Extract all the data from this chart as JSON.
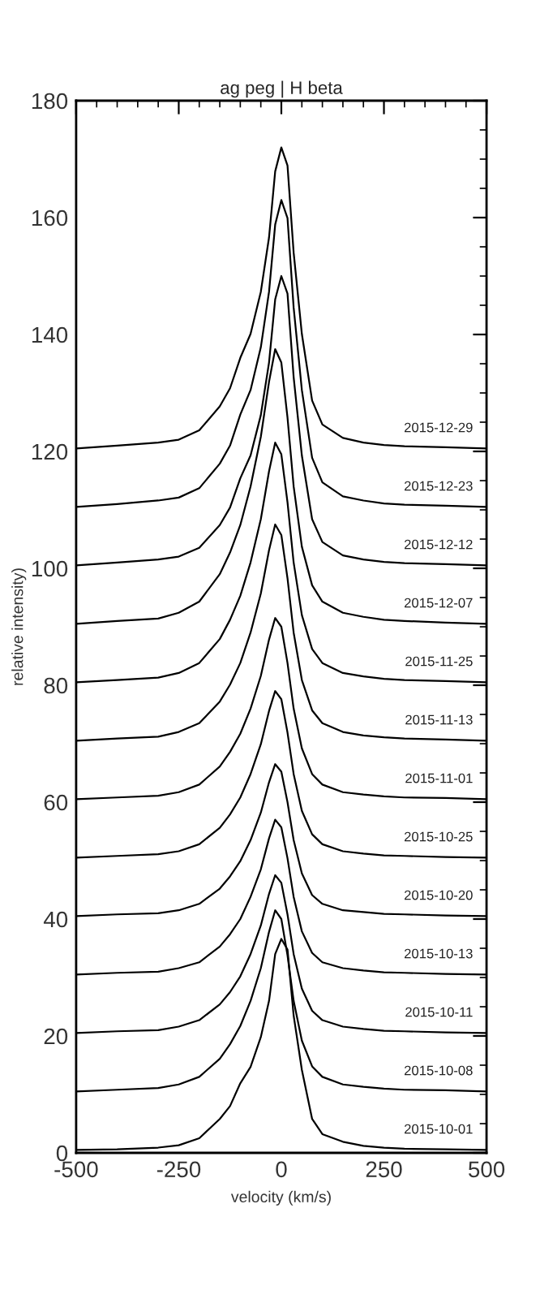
{
  "chart_data": {
    "type": "line",
    "title": "ag peg | H beta",
    "xlabel": "velocity (km/s)",
    "ylabel": "relative intensity)",
    "x": [
      -500,
      -400,
      -300,
      -250,
      -200,
      -150,
      -125,
      -100,
      -75,
      -50,
      -30,
      -15,
      0,
      15,
      30,
      50,
      75,
      100,
      150,
      200,
      250,
      300,
      400,
      500
    ],
    "xlim": [
      -500,
      500
    ],
    "xticks": [
      -500,
      -250,
      0,
      250,
      500
    ],
    "ylim": [
      0,
      180
    ],
    "yticks": [
      0,
      20,
      40,
      60,
      80,
      100,
      120,
      140,
      160,
      180
    ],
    "grid": false,
    "legend": "right",
    "marker": "none",
    "line_style": "solid",
    "series": [
      {
        "name": "2015-10-01",
        "color": "#000000",
        "values": [
          0.5,
          0.6,
          0.9,
          1.3,
          2.5,
          5.8,
          8,
          11.9,
          14.7,
          19.8,
          26,
          34,
          36.6,
          34.8,
          23.5,
          14.2,
          5.8,
          3.2,
          1.9,
          1.2,
          0.9,
          0.7,
          0.6,
          0.5
        ]
      },
      {
        "name": "2015-10-08",
        "color": "#000000",
        "values": [
          10.5,
          10.8,
          11.1,
          11.7,
          13,
          16.1,
          18.6,
          21.7,
          26,
          31.6,
          37.8,
          41.5,
          40,
          33.8,
          26,
          19.2,
          14.8,
          13,
          11.7,
          11.3,
          11,
          10.8,
          10.7,
          10.5
        ]
      },
      {
        "name": "2015-10-11",
        "color": "#000000",
        "values": [
          20.5,
          20.8,
          21,
          21.6,
          22.7,
          25.4,
          27.5,
          30.2,
          34,
          38.9,
          44.3,
          47.5,
          46.2,
          40.8,
          34,
          28.1,
          24.3,
          22.7,
          21.6,
          21.2,
          20.9,
          20.8,
          20.6,
          20.5
        ]
      },
      {
        "name": "2015-10-13",
        "color": "#000000",
        "values": [
          30.5,
          30.8,
          31,
          31.6,
          32.6,
          35.3,
          37.4,
          40,
          43.8,
          48.5,
          53.8,
          57,
          55.7,
          50.4,
          43.8,
          37.9,
          34.2,
          32.6,
          31.6,
          31.2,
          30.9,
          30.8,
          30.6,
          30.5
        ]
      },
      {
        "name": "2015-10-20",
        "color": "#000000",
        "values": [
          40.5,
          40.8,
          41,
          41.5,
          42.6,
          45.2,
          47.3,
          49.9,
          53.5,
          58.2,
          63.4,
          66.5,
          65.2,
          60,
          53.5,
          47.8,
          44.1,
          42.6,
          41.5,
          41.2,
          40.9,
          40.8,
          40.6,
          40.5
        ]
      },
      {
        "name": "2015-10-25",
        "color": "#000000",
        "values": [
          50.5,
          50.8,
          51.1,
          51.6,
          52.8,
          55.6,
          57.9,
          60.8,
          64.8,
          69.9,
          75.6,
          79,
          77.6,
          71.9,
          64.8,
          58.5,
          54.5,
          52.8,
          51.6,
          51.2,
          50.9,
          50.8,
          50.6,
          50.5
        ]
      },
      {
        "name": "2015-11-01",
        "color": "#000000",
        "values": [
          60.5,
          60.8,
          61.1,
          61.7,
          63,
          66.1,
          68.6,
          71.7,
          76,
          81.6,
          87.8,
          91.5,
          90,
          83.8,
          76,
          69.2,
          64.8,
          63,
          61.7,
          61.3,
          61,
          60.8,
          60.7,
          60.5
        ]
      },
      {
        "name": "2015-11-13",
        "color": "#000000",
        "values": [
          70.5,
          70.9,
          71.2,
          72,
          73.5,
          77.2,
          80.1,
          83.8,
          89,
          95.7,
          103.1,
          107.5,
          105.7,
          98.3,
          89,
          80.9,
          75.7,
          73.5,
          72,
          71.4,
          71.1,
          70.9,
          70.7,
          70.5
        ]
      },
      {
        "name": "2015-11-25",
        "color": "#000000",
        "values": [
          80.5,
          80.9,
          81.3,
          82.1,
          83.8,
          87.9,
          91.2,
          95.3,
          101,
          108.4,
          116.6,
          121.5,
          119.5,
          111.3,
          101,
          92,
          86.2,
          83.8,
          82.1,
          81.5,
          81.1,
          80.9,
          80.7,
          80.5
        ]
      },
      {
        "name": "2015-12-07",
        "color": "#000000",
        "values": [
          90.5,
          91,
          91.4,
          92.4,
          94.3,
          99,
          102.7,
          107.4,
          114,
          122.5,
          131.9,
          137.5,
          135.2,
          125.8,
          114,
          103.7,
          97.1,
          94.3,
          92.4,
          91.7,
          91.2,
          91,
          90.7,
          90.5
        ]
      },
      {
        "name": "2015-12-12",
        "color": "#000000",
        "values": [
          100.5,
          101,
          101.5,
          102,
          103.5,
          107.4,
          110.4,
          115.4,
          119.3,
          126.2,
          135.2,
          146,
          150,
          147,
          132.7,
          119.3,
          108.4,
          104.5,
          102.2,
          101.5,
          101.1,
          100.9,
          100.7,
          100.5
        ]
      },
      {
        "name": "2015-12-23",
        "color": "#000000",
        "values": [
          110.5,
          111,
          111.6,
          112.1,
          113.7,
          117.9,
          121,
          126.3,
          130.5,
          137.8,
          147.3,
          158.8,
          163,
          159.9,
          144.6,
          130.5,
          118.9,
          114.7,
          112.3,
          111.6,
          111.1,
          110.9,
          110.7,
          110.5
        ]
      },
      {
        "name": "2015-12-29",
        "color": "#000000",
        "values": [
          120.5,
          121,
          121.5,
          122,
          123.6,
          127.7,
          130.8,
          136,
          140.1,
          147.3,
          156.6,
          167.9,
          172,
          168.9,
          154,
          140.1,
          128.7,
          124.6,
          122.3,
          121.5,
          121.1,
          120.9,
          120.7,
          120.5
        ]
      }
    ]
  }
}
